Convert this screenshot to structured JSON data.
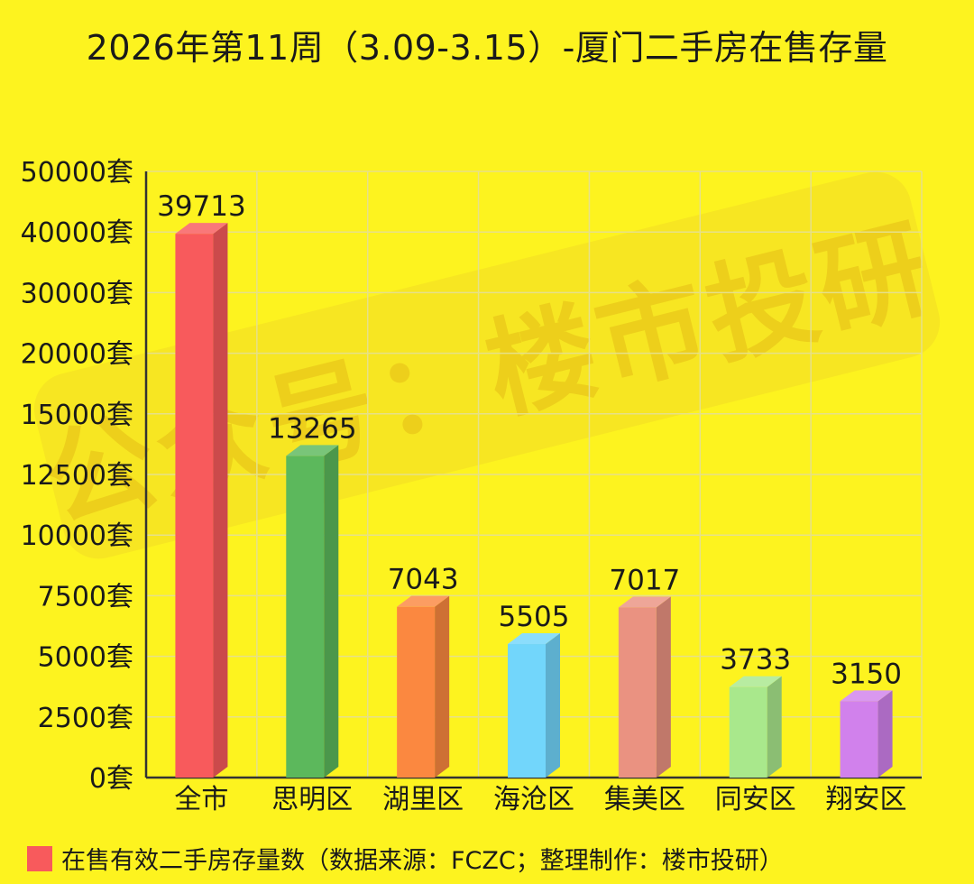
{
  "chart_data": {
    "type": "bar",
    "title": "2026年第11周（3.09-3.15）-厦门二手房在售存量",
    "categories": [
      "全市",
      "思明区",
      "湖里区",
      "海沧区",
      "集美区",
      "同安区",
      "翔安区"
    ],
    "series": [
      {
        "name": "在售有效二手房存量数（数据来源：FCZC；整理制作：楼市投研）",
        "values": [
          39713,
          13265,
          7043,
          5505,
          7017,
          3733,
          3150
        ],
        "colors": [
          "#f85a5c",
          "#5cb85c",
          "#fb8840",
          "#72d6fb",
          "#ea9281",
          "#a9e88c",
          "#d181ec"
        ]
      }
    ],
    "yticks": [
      "0套",
      "2500套",
      "5000套",
      "7500套",
      "10000套",
      "12500套",
      "15000套",
      "20000套",
      "30000套",
      "40000套",
      "50000套"
    ],
    "ytick_values": [
      0,
      2500,
      5000,
      7500,
      10000,
      12500,
      15000,
      20000,
      30000,
      40000,
      50000
    ],
    "grid": true,
    "legend": "bottom-left",
    "watermark": "公众号：楼市投研"
  }
}
